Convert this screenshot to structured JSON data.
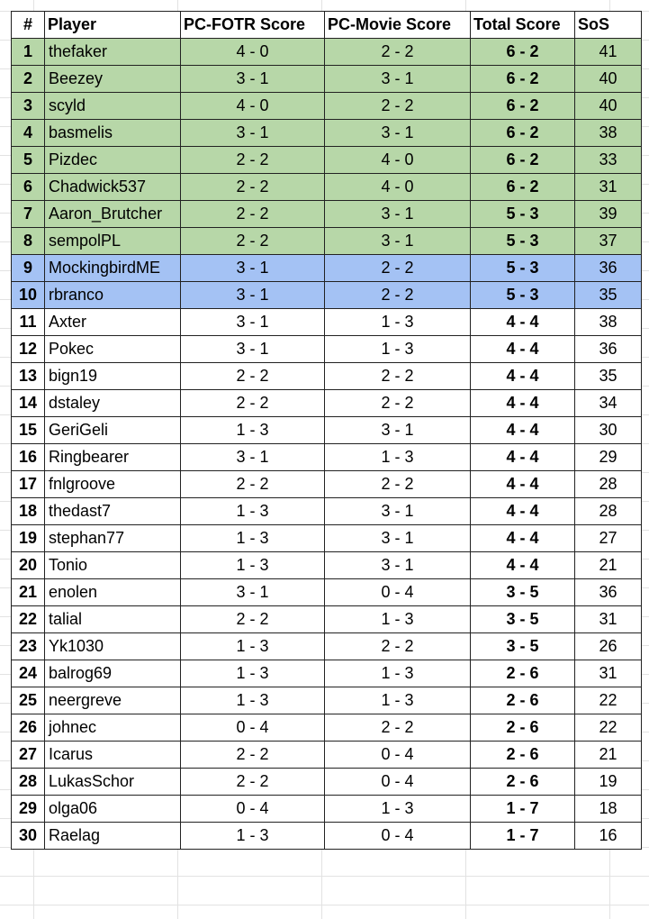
{
  "colors": {
    "qualified_green": "#b7d7a8",
    "playoff_blue": "#a4c2f4",
    "header_bg": "#ffffff"
  },
  "table": {
    "headers": {
      "rank": "#",
      "player": "Player",
      "fotr": "PC-FOTR Score",
      "movie": "PC-Movie Score",
      "total": "Total Score",
      "sos": "SoS"
    },
    "rows": [
      {
        "rank": "1",
        "player": "thefaker",
        "fotr": "4 - 0",
        "movie": "2 - 2",
        "total": "6 - 2",
        "sos": "41",
        "highlight": "green"
      },
      {
        "rank": "2",
        "player": "Beezey",
        "fotr": "3 - 1",
        "movie": "3 - 1",
        "total": "6 - 2",
        "sos": "40",
        "highlight": "green"
      },
      {
        "rank": "3",
        "player": "scyld",
        "fotr": "4 - 0",
        "movie": "2 - 2",
        "total": "6 - 2",
        "sos": "40",
        "highlight": "green"
      },
      {
        "rank": "4",
        "player": "basmelis",
        "fotr": "3 - 1",
        "movie": "3 - 1",
        "total": "6 - 2",
        "sos": "38",
        "highlight": "green"
      },
      {
        "rank": "5",
        "player": "Pizdec",
        "fotr": "2 - 2",
        "movie": "4 - 0",
        "total": "6 - 2",
        "sos": "33",
        "highlight": "green"
      },
      {
        "rank": "6",
        "player": "Chadwick537",
        "fotr": "2 - 2",
        "movie": "4 - 0",
        "total": "6 - 2",
        "sos": "31",
        "highlight": "green"
      },
      {
        "rank": "7",
        "player": "Aaron_Brutcher",
        "fotr": "2 - 2",
        "movie": "3 - 1",
        "total": "5 - 3",
        "sos": "39",
        "highlight": "green"
      },
      {
        "rank": "8",
        "player": "sempolPL",
        "fotr": "2 - 2",
        "movie": "3 - 1",
        "total": "5 - 3",
        "sos": "37",
        "highlight": "green"
      },
      {
        "rank": "9",
        "player": "MockingbirdME",
        "fotr": "3 - 1",
        "movie": "2 - 2",
        "total": "5 - 3",
        "sos": "36",
        "highlight": "blue"
      },
      {
        "rank": "10",
        "player": "rbranco",
        "fotr": "3 - 1",
        "movie": "2 - 2",
        "total": "5 - 3",
        "sos": "35",
        "highlight": "blue"
      },
      {
        "rank": "11",
        "player": "Axter",
        "fotr": "3 - 1",
        "movie": "1 - 3",
        "total": "4 - 4",
        "sos": "38",
        "highlight": "none"
      },
      {
        "rank": "12",
        "player": "Pokec",
        "fotr": "3 - 1",
        "movie": "1 - 3",
        "total": "4 - 4",
        "sos": "36",
        "highlight": "none"
      },
      {
        "rank": "13",
        "player": "bign19",
        "fotr": "2 - 2",
        "movie": "2 - 2",
        "total": "4 - 4",
        "sos": "35",
        "highlight": "none"
      },
      {
        "rank": "14",
        "player": "dstaley",
        "fotr": "2 - 2",
        "movie": "2 - 2",
        "total": "4 - 4",
        "sos": "34",
        "highlight": "none"
      },
      {
        "rank": "15",
        "player": "GeriGeli",
        "fotr": "1 - 3",
        "movie": "3 - 1",
        "total": "4 - 4",
        "sos": "30",
        "highlight": "none"
      },
      {
        "rank": "16",
        "player": "Ringbearer",
        "fotr": "3 - 1",
        "movie": "1 - 3",
        "total": "4 - 4",
        "sos": "29",
        "highlight": "none"
      },
      {
        "rank": "17",
        "player": "fnlgroove",
        "fotr": "2 - 2",
        "movie": "2 - 2",
        "total": "4 - 4",
        "sos": "28",
        "highlight": "none"
      },
      {
        "rank": "18",
        "player": "thedast7",
        "fotr": "1 - 3",
        "movie": "3 - 1",
        "total": "4 - 4",
        "sos": "28",
        "highlight": "none"
      },
      {
        "rank": "19",
        "player": "stephan77",
        "fotr": "1 - 3",
        "movie": "3 - 1",
        "total": "4 - 4",
        "sos": "27",
        "highlight": "none"
      },
      {
        "rank": "20",
        "player": "Tonio",
        "fotr": "1 - 3",
        "movie": "3 - 1",
        "total": "4 - 4",
        "sos": "21",
        "highlight": "none"
      },
      {
        "rank": "21",
        "player": "enolen",
        "fotr": "3 - 1",
        "movie": "0 - 4",
        "total": "3 - 5",
        "sos": "36",
        "highlight": "none"
      },
      {
        "rank": "22",
        "player": "talial",
        "fotr": "2 - 2",
        "movie": "1 - 3",
        "total": "3 - 5",
        "sos": "31",
        "highlight": "none"
      },
      {
        "rank": "23",
        "player": "Yk1030",
        "fotr": "1 - 3",
        "movie": "2 - 2",
        "total": "3 - 5",
        "sos": "26",
        "highlight": "none"
      },
      {
        "rank": "24",
        "player": "balrog69",
        "fotr": "1 - 3",
        "movie": "1 - 3",
        "total": "2 - 6",
        "sos": "31",
        "highlight": "none"
      },
      {
        "rank": "25",
        "player": "neergreve",
        "fotr": "1 - 3",
        "movie": "1 - 3",
        "total": "2 - 6",
        "sos": "22",
        "highlight": "none"
      },
      {
        "rank": "26",
        "player": "johnec",
        "fotr": "0 - 4",
        "movie": "2 - 2",
        "total": "2 - 6",
        "sos": "22",
        "highlight": "none"
      },
      {
        "rank": "27",
        "player": "Icarus",
        "fotr": "2 - 2",
        "movie": "0 - 4",
        "total": "2 - 6",
        "sos": "21",
        "highlight": "none"
      },
      {
        "rank": "28",
        "player": "LukasSchor",
        "fotr": "2 - 2",
        "movie": "0 - 4",
        "total": "2 - 6",
        "sos": "19",
        "highlight": "none"
      },
      {
        "rank": "29",
        "player": "olga06",
        "fotr": "0 - 4",
        "movie": "1 - 3",
        "total": "1 - 7",
        "sos": "18",
        "highlight": "none"
      },
      {
        "rank": "30",
        "player": "Raelag",
        "fotr": "1 - 3",
        "movie": "0 - 4",
        "total": "1 - 7",
        "sos": "16",
        "highlight": "none"
      }
    ]
  }
}
